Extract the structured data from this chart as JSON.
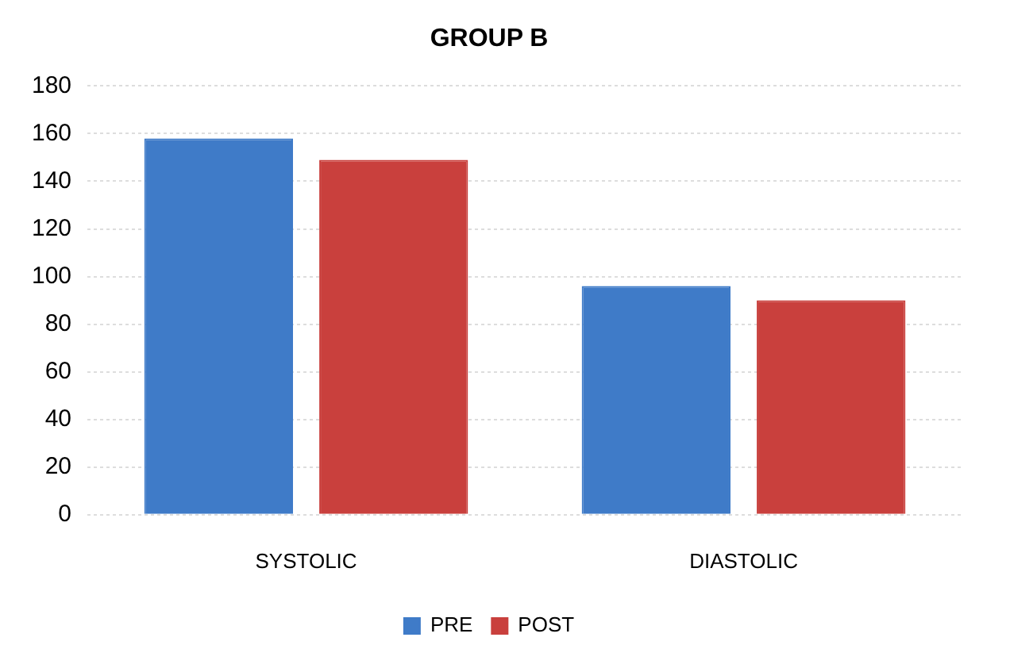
{
  "chart_data": {
    "type": "bar",
    "title": "GROUP B",
    "categories": [
      "SYSTOLIC",
      "DIASTOLIC"
    ],
    "series": [
      {
        "name": "PRE",
        "color": "#3f7bc8",
        "values": [
          158,
          96
        ]
      },
      {
        "name": "POST",
        "color": "#c9403d",
        "values": [
          149,
          90
        ]
      }
    ],
    "ylim": [
      0,
      180
    ],
    "yticks": [
      0,
      20,
      40,
      60,
      80,
      100,
      120,
      140,
      160,
      180
    ],
    "grid": "y",
    "legend": "bottom"
  }
}
